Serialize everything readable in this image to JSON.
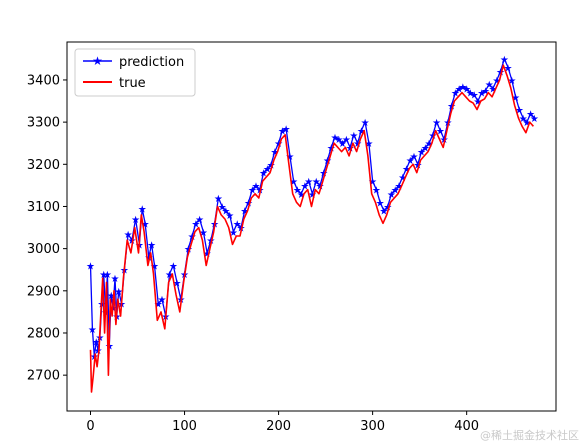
{
  "chart_data": {
    "type": "line",
    "title": "",
    "xlabel": "",
    "ylabel": "",
    "xlim": [
      -25,
      495
    ],
    "ylim": [
      2615,
      3490
    ],
    "x_ticks": [
      0,
      100,
      200,
      300,
      400
    ],
    "y_ticks": [
      2700,
      2800,
      2900,
      3000,
      3100,
      3200,
      3300,
      3400
    ],
    "legend_position": "upper-left",
    "series": [
      {
        "name": "prediction",
        "color": "#0000ff",
        "marker": "star",
        "anchors": [
          [
            0,
            2960
          ],
          [
            2,
            2810
          ],
          [
            4,
            2745
          ],
          [
            6,
            2780
          ],
          [
            8,
            2760
          ],
          [
            10,
            2790
          ],
          [
            12,
            2870
          ],
          [
            14,
            2940
          ],
          [
            16,
            2850
          ],
          [
            18,
            2940
          ],
          [
            20,
            2770
          ],
          [
            22,
            2890
          ],
          [
            24,
            2860
          ],
          [
            26,
            2930
          ],
          [
            28,
            2840
          ],
          [
            30,
            2900
          ],
          [
            33,
            2870
          ],
          [
            36,
            2950
          ],
          [
            40,
            3035
          ],
          [
            44,
            3020
          ],
          [
            48,
            3070
          ],
          [
            52,
            3010
          ],
          [
            55,
            3095
          ],
          [
            58,
            3060
          ],
          [
            62,
            2980
          ],
          [
            65,
            3010
          ],
          [
            68,
            2960
          ],
          [
            72,
            2870
          ],
          [
            76,
            2880
          ],
          [
            80,
            2840
          ],
          [
            84,
            2940
          ],
          [
            88,
            2960
          ],
          [
            92,
            2920
          ],
          [
            96,
            2880
          ],
          [
            100,
            2940
          ],
          [
            104,
            3000
          ],
          [
            108,
            3030
          ],
          [
            112,
            3060
          ],
          [
            116,
            3070
          ],
          [
            120,
            3040
          ],
          [
            124,
            2990
          ],
          [
            128,
            3020
          ],
          [
            132,
            3060
          ],
          [
            136,
            3120
          ],
          [
            140,
            3100
          ],
          [
            144,
            3090
          ],
          [
            148,
            3080
          ],
          [
            152,
            3040
          ],
          [
            156,
            3060
          ],
          [
            160,
            3050
          ],
          [
            164,
            3090
          ],
          [
            168,
            3110
          ],
          [
            172,
            3140
          ],
          [
            176,
            3150
          ],
          [
            180,
            3140
          ],
          [
            184,
            3180
          ],
          [
            188,
            3190
          ],
          [
            192,
            3200
          ],
          [
            196,
            3230
          ],
          [
            200,
            3250
          ],
          [
            204,
            3280
          ],
          [
            208,
            3285
          ],
          [
            212,
            3220
          ],
          [
            216,
            3160
          ],
          [
            220,
            3140
          ],
          [
            224,
            3130
          ],
          [
            228,
            3150
          ],
          [
            232,
            3160
          ],
          [
            236,
            3130
          ],
          [
            240,
            3160
          ],
          [
            244,
            3150
          ],
          [
            248,
            3180
          ],
          [
            252,
            3210
          ],
          [
            256,
            3240
          ],
          [
            260,
            3265
          ],
          [
            264,
            3260
          ],
          [
            268,
            3250
          ],
          [
            272,
            3260
          ],
          [
            276,
            3240
          ],
          [
            280,
            3270
          ],
          [
            284,
            3250
          ],
          [
            288,
            3280
          ],
          [
            292,
            3300
          ],
          [
            296,
            3250
          ],
          [
            300,
            3160
          ],
          [
            304,
            3140
          ],
          [
            308,
            3110
          ],
          [
            312,
            3090
          ],
          [
            316,
            3100
          ],
          [
            320,
            3130
          ],
          [
            324,
            3140
          ],
          [
            328,
            3150
          ],
          [
            332,
            3170
          ],
          [
            336,
            3190
          ],
          [
            340,
            3210
          ],
          [
            344,
            3220
          ],
          [
            348,
            3200
          ],
          [
            352,
            3230
          ],
          [
            356,
            3240
          ],
          [
            360,
            3250
          ],
          [
            364,
            3270
          ],
          [
            368,
            3300
          ],
          [
            372,
            3280
          ],
          [
            376,
            3260
          ],
          [
            380,
            3300
          ],
          [
            384,
            3340
          ],
          [
            388,
            3370
          ],
          [
            392,
            3380
          ],
          [
            396,
            3385
          ],
          [
            400,
            3380
          ],
          [
            404,
            3370
          ],
          [
            408,
            3365
          ],
          [
            412,
            3350
          ],
          [
            416,
            3370
          ],
          [
            420,
            3375
          ],
          [
            424,
            3390
          ],
          [
            428,
            3380
          ],
          [
            432,
            3400
          ],
          [
            436,
            3420
          ],
          [
            440,
            3450
          ],
          [
            444,
            3430
          ],
          [
            448,
            3400
          ],
          [
            452,
            3360
          ],
          [
            456,
            3330
          ],
          [
            460,
            3310
          ],
          [
            464,
            3300
          ],
          [
            468,
            3320
          ],
          [
            472,
            3310
          ]
        ]
      },
      {
        "name": "true",
        "color": "#ff0000",
        "marker": "none",
        "anchors": [
          [
            0,
            2760
          ],
          [
            1,
            2660
          ],
          [
            3,
            2700
          ],
          [
            5,
            2750
          ],
          [
            7,
            2720
          ],
          [
            9,
            2760
          ],
          [
            11,
            2850
          ],
          [
            13,
            2930
          ],
          [
            15,
            2800
          ],
          [
            17,
            2920
          ],
          [
            19,
            2700
          ],
          [
            21,
            2880
          ],
          [
            23,
            2840
          ],
          [
            25,
            2900
          ],
          [
            27,
            2820
          ],
          [
            29,
            2880
          ],
          [
            32,
            2840
          ],
          [
            35,
            2930
          ],
          [
            39,
            3020
          ],
          [
            43,
            2990
          ],
          [
            47,
            3050
          ],
          [
            51,
            2990
          ],
          [
            54,
            3080
          ],
          [
            57,
            3040
          ],
          [
            61,
            2960
          ],
          [
            64,
            2990
          ],
          [
            67,
            2940
          ],
          [
            71,
            2830
          ],
          [
            75,
            2850
          ],
          [
            79,
            2810
          ],
          [
            83,
            2920
          ],
          [
            87,
            2940
          ],
          [
            91,
            2890
          ],
          [
            95,
            2850
          ],
          [
            99,
            2920
          ],
          [
            103,
            2980
          ],
          [
            107,
            3010
          ],
          [
            111,
            3040
          ],
          [
            115,
            3050
          ],
          [
            119,
            3020
          ],
          [
            123,
            2960
          ],
          [
            127,
            3000
          ],
          [
            131,
            3040
          ],
          [
            135,
            3100
          ],
          [
            139,
            3080
          ],
          [
            143,
            3070
          ],
          [
            147,
            3050
          ],
          [
            151,
            3010
          ],
          [
            155,
            3030
          ],
          [
            159,
            3030
          ],
          [
            163,
            3070
          ],
          [
            167,
            3090
          ],
          [
            171,
            3120
          ],
          [
            175,
            3130
          ],
          [
            179,
            3120
          ],
          [
            183,
            3160
          ],
          [
            187,
            3170
          ],
          [
            191,
            3180
          ],
          [
            195,
            3210
          ],
          [
            199,
            3230
          ],
          [
            203,
            3260
          ],
          [
            207,
            3270
          ],
          [
            211,
            3200
          ],
          [
            215,
            3130
          ],
          [
            219,
            3110
          ],
          [
            223,
            3100
          ],
          [
            227,
            3130
          ],
          [
            231,
            3140
          ],
          [
            235,
            3100
          ],
          [
            239,
            3140
          ],
          [
            243,
            3130
          ],
          [
            247,
            3160
          ],
          [
            251,
            3190
          ],
          [
            255,
            3220
          ],
          [
            259,
            3250
          ],
          [
            263,
            3240
          ],
          [
            267,
            3230
          ],
          [
            271,
            3240
          ],
          [
            275,
            3220
          ],
          [
            279,
            3250
          ],
          [
            283,
            3230
          ],
          [
            287,
            3260
          ],
          [
            291,
            3280
          ],
          [
            295,
            3220
          ],
          [
            299,
            3130
          ],
          [
            303,
            3110
          ],
          [
            307,
            3080
          ],
          [
            311,
            3060
          ],
          [
            315,
            3080
          ],
          [
            319,
            3110
          ],
          [
            323,
            3120
          ],
          [
            327,
            3130
          ],
          [
            331,
            3150
          ],
          [
            335,
            3170
          ],
          [
            339,
            3190
          ],
          [
            343,
            3200
          ],
          [
            347,
            3180
          ],
          [
            351,
            3210
          ],
          [
            355,
            3220
          ],
          [
            359,
            3230
          ],
          [
            363,
            3250
          ],
          [
            367,
            3280
          ],
          [
            371,
            3260
          ],
          [
            375,
            3240
          ],
          [
            379,
            3280
          ],
          [
            383,
            3320
          ],
          [
            387,
            3350
          ],
          [
            391,
            3360
          ],
          [
            395,
            3370
          ],
          [
            399,
            3360
          ],
          [
            403,
            3350
          ],
          [
            407,
            3345
          ],
          [
            411,
            3330
          ],
          [
            415,
            3350
          ],
          [
            419,
            3355
          ],
          [
            423,
            3370
          ],
          [
            427,
            3360
          ],
          [
            431,
            3380
          ],
          [
            435,
            3400
          ],
          [
            439,
            3435
          ],
          [
            443,
            3410
          ],
          [
            447,
            3380
          ],
          [
            451,
            3340
          ],
          [
            455,
            3310
          ],
          [
            459,
            3290
          ],
          [
            463,
            3275
          ],
          [
            467,
            3300
          ],
          [
            471,
            3290
          ]
        ]
      }
    ]
  },
  "legend": {
    "items": [
      "prediction",
      "true"
    ]
  },
  "watermark": "@稀土掘金技术社区"
}
